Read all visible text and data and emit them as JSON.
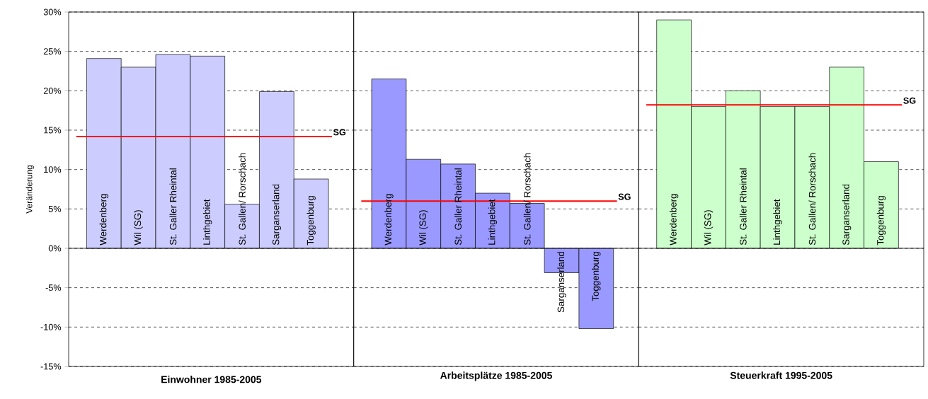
{
  "chart_data": [
    {
      "type": "bar",
      "xlabel": "Einwohner 1985-2005",
      "ylabel": "Veränderung",
      "categories": [
        "Werdenberg",
        "Wil (SG)",
        "St. Galler Rheintal",
        "Linthgebiet",
        "St. Gallen/ Rorschach",
        "Sarganserland",
        "Toggenburg"
      ],
      "values": [
        24.1,
        23.0,
        24.6,
        24.4,
        5.6,
        19.9,
        8.8
      ],
      "color": "#ccccff",
      "ylim": [
        -15,
        30
      ],
      "yticks": [
        {
          "value": -15,
          "label": "-15%"
        },
        {
          "value": -10,
          "label": "-10%"
        },
        {
          "value": -5,
          "label": "-5%"
        },
        {
          "value": 0,
          "label": "0%"
        },
        {
          "value": 5,
          "label": "5%"
        },
        {
          "value": 10,
          "label": "10%"
        },
        {
          "value": 15,
          "label": "15%"
        },
        {
          "value": 20,
          "label": "20%"
        },
        {
          "value": 25,
          "label": "25%"
        },
        {
          "value": 30,
          "label": "30%"
        }
      ],
      "grid": "y",
      "tick_labels": "y",
      "ref_lines": [
        {
          "axis": "y",
          "value": 14.2,
          "label": "SG",
          "color": "#ff0000"
        }
      ]
    },
    {
      "type": "bar",
      "xlabel": "Arbeitsplätze 1985-2005",
      "categories": [
        "Werdenberg",
        "Wil (SG)",
        "St. Galler Rheintal",
        "Linthgebiet",
        "St. Gallen/ Rorschach",
        "Sarganserland",
        "Toggenburg"
      ],
      "values": [
        21.5,
        11.3,
        10.7,
        7.0,
        5.7,
        -3.1,
        -10.2
      ],
      "color": "#9999ff",
      "ylim": [
        -15,
        30
      ],
      "yticks": [
        -15,
        -10,
        -5,
        0,
        5,
        10,
        15,
        20,
        25,
        30
      ],
      "grid": "y",
      "tick_labels": false,
      "ref_lines": [
        {
          "axis": "y",
          "value": 6.0,
          "label": "SG",
          "color": "#ff0000"
        }
      ]
    },
    {
      "type": "bar",
      "xlabel": "Steuerkraft 1995-2005",
      "categories": [
        "Werdenberg",
        "Wil (SG)",
        "St. Galler Rheintal",
        "Linthgebiet",
        "St. Gallen/ Rorschach",
        "Sarganserland",
        "Toggenburg"
      ],
      "values": [
        29.0,
        18.0,
        20.0,
        18.0,
        18.0,
        23.0,
        11.0
      ],
      "color": "#ccffcc",
      "ylim": [
        -15,
        30
      ],
      "yticks": [
        -15,
        -10,
        -5,
        0,
        5,
        10,
        15,
        20,
        25,
        30
      ],
      "grid": "y",
      "tick_labels": false,
      "ref_lines": [
        {
          "axis": "y",
          "value": 18.2,
          "label": "SG",
          "color": "#ff0000"
        }
      ]
    }
  ]
}
